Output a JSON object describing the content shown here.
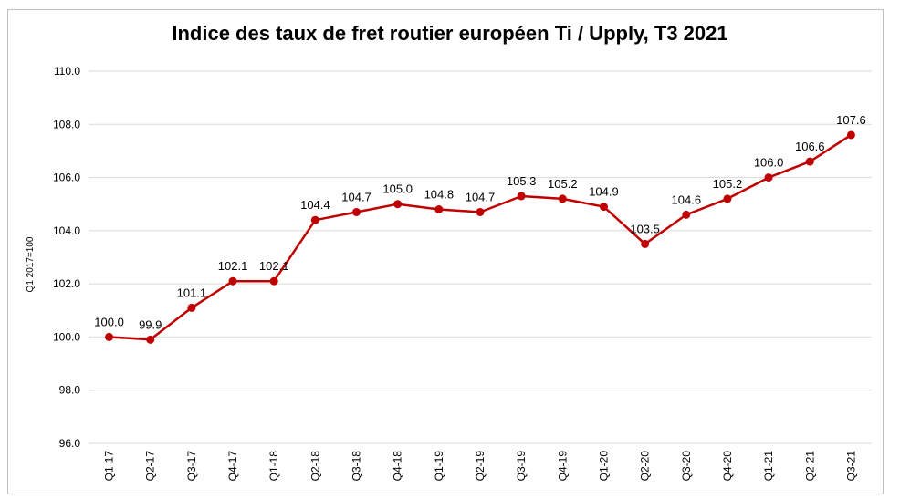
{
  "chart_data": {
    "type": "line",
    "title": "Indice des taux de fret routier européen Ti / Upply, T3 2021",
    "xlabel": "",
    "ylabel": "Q1 2017=100",
    "ylim": [
      96.0,
      110.0
    ],
    "yticks": [
      "96.0",
      "98.0",
      "100.0",
      "102.0",
      "104.0",
      "106.0",
      "108.0",
      "110.0"
    ],
    "grid": true,
    "legend": "none",
    "line_color": "#c00000",
    "categories": [
      "Q1-17",
      "Q2-17",
      "Q3-17",
      "Q4-17",
      "Q1-18",
      "Q2-18",
      "Q3-18",
      "Q4-18",
      "Q1-19",
      "Q2-19",
      "Q3-19",
      "Q4-19",
      "Q1-20",
      "Q2-20",
      "Q3-20",
      "Q4-20",
      "Q1-21",
      "Q2-21",
      "Q3-21"
    ],
    "values": [
      100.0,
      99.9,
      101.1,
      102.1,
      102.1,
      104.4,
      104.7,
      105.0,
      104.8,
      104.7,
      105.3,
      105.2,
      104.9,
      103.5,
      104.6,
      105.2,
      106.0,
      106.6,
      107.6
    ],
    "value_labels": [
      "100.0",
      "99.9",
      "101.1",
      "102.1",
      "102.1",
      "104.4",
      "104.7",
      "105.0",
      "104.8",
      "104.7",
      "105.3",
      "105.2",
      "104.9",
      "103.5",
      "104.6",
      "105.2",
      "106.0",
      "106.6",
      "107.6"
    ]
  }
}
